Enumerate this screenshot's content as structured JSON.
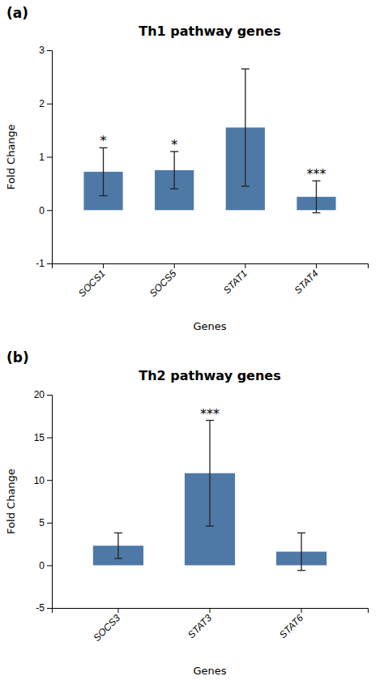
{
  "chart_data": [
    {
      "type": "bar",
      "panel_label": "(a)",
      "title": "Th1 pathway genes",
      "categories": [
        "SOCS1",
        "SOCS5",
        "STAT1",
        "STAT4"
      ],
      "values": [
        0.72,
        0.75,
        1.55,
        0.25
      ],
      "errors": [
        0.45,
        0.35,
        1.1,
        0.3
      ],
      "significance": [
        "*",
        "*",
        null,
        "***"
      ],
      "ylim": [
        -1,
        3
      ],
      "yticks": [
        -1,
        0,
        1,
        2,
        3
      ],
      "ylabel": "Fold Change",
      "xlabel": "Genes",
      "grid": false
    },
    {
      "type": "bar",
      "panel_label": "(b)",
      "title": "Th2 pathway genes",
      "categories": [
        "SOCS3",
        "STAT3",
        "STAT6"
      ],
      "values": [
        2.3,
        10.8,
        1.6
      ],
      "errors": [
        1.5,
        6.2,
        2.2
      ],
      "significance": [
        null,
        "***",
        null
      ],
      "ylim": [
        -5,
        20
      ],
      "yticks": [
        -5,
        0,
        5,
        10,
        15,
        20
      ],
      "ylabel": "Fold Change",
      "xlabel": "Genes",
      "grid": false
    }
  ]
}
